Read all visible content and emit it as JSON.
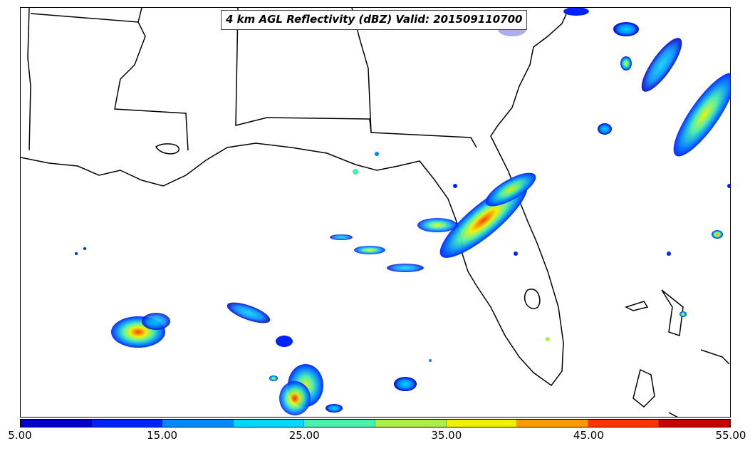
{
  "map": {
    "title": "4 km AGL Reflectivity (dBZ) Valid: 201509110700",
    "variable": "Reflectivity",
    "units": "dBZ",
    "level": "4 km AGL",
    "valid_time": "201509110700"
  },
  "colorbar": {
    "ticks": [
      "5.00",
      "15.00",
      "25.00",
      "35.00",
      "45.00",
      "55.00"
    ],
    "min": 5,
    "max": 55,
    "step": 5,
    "colors": [
      "#0000c8",
      "#0022ff",
      "#0088ff",
      "#00d8ff",
      "#48f0a8",
      "#a8f048",
      "#f0f000",
      "#ff9900",
      "#ff3300",
      "#c80000"
    ]
  }
}
